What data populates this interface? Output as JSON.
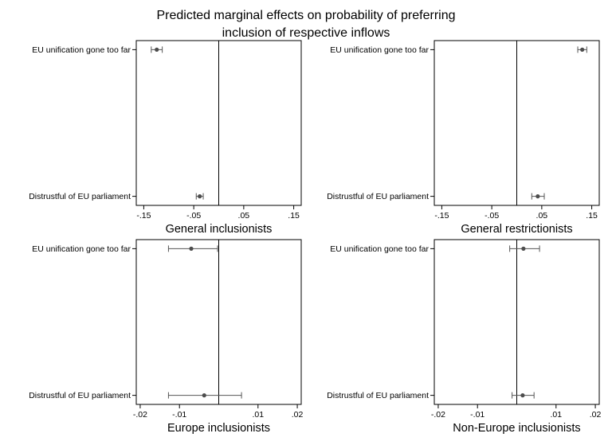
{
  "chart_data": {
    "type": "scatter",
    "title_lines": [
      "Predicted marginal effects on probability of preferring",
      "inclusion of respective inflows"
    ],
    "panels": [
      {
        "title": "General inclusionists",
        "categories": [
          "EU unification gone too far",
          "Distrustful of EU parliament"
        ],
        "xlim": [
          -0.165,
          0.165
        ],
        "xticks": [
          -0.15,
          -0.05,
          0.05,
          0.15
        ],
        "xtick_labels": [
          "-.15",
          "-.05",
          ".05",
          ".15"
        ],
        "reference_line": 0,
        "series": [
          {
            "estimates": [
              -0.124,
              -0.038
            ],
            "ci_low": [
              -0.135,
              -0.045
            ],
            "ci_high": [
              -0.113,
              -0.031
            ]
          }
        ]
      },
      {
        "title": "General restrictionists",
        "categories": [
          "EU unification gone too far",
          "Distrustful of EU parliament"
        ],
        "xlim": [
          -0.165,
          0.165
        ],
        "xticks": [
          -0.15,
          -0.05,
          0.05,
          0.15
        ],
        "xtick_labels": [
          "-.15",
          "-.05",
          ".05",
          ".15"
        ],
        "reference_line": 0,
        "series": [
          {
            "estimates": [
              0.131,
              0.042
            ],
            "ci_low": [
              0.122,
              0.03
            ],
            "ci_high": [
              0.14,
              0.055
            ]
          }
        ]
      },
      {
        "title": "Europe inclusionists",
        "categories": [
          "EU unification gone too far",
          "Distrustful of EU parliament"
        ],
        "xlim": [
          -0.021,
          0.021
        ],
        "xticks": [
          -0.02,
          -0.01,
          0.01,
          0.02
        ],
        "xtick_labels": [
          "-.02",
          "-.01",
          ".01",
          ".02"
        ],
        "reference_line": 0,
        "series": [
          {
            "estimates": [
              -0.007,
              -0.0037
            ],
            "ci_low": [
              -0.0128,
              -0.0128
            ],
            "ci_high": [
              -0.0003,
              0.0058
            ]
          }
        ]
      },
      {
        "title": "Non-Europe inclusionists",
        "categories": [
          "EU unification gone too far",
          "Distrustful of EU parliament"
        ],
        "xlim": [
          -0.021,
          0.021
        ],
        "xticks": [
          -0.02,
          -0.01,
          0.01,
          0.02
        ],
        "xtick_labels": [
          "-.02",
          "-.01",
          ".01",
          ".02"
        ],
        "reference_line": 0,
        "series": [
          {
            "estimates": [
              0.0017,
              0.0015
            ],
            "ci_low": [
              -0.0018,
              -0.0012
            ],
            "ci_high": [
              0.0058,
              0.0044
            ]
          }
        ]
      }
    ],
    "grid": false,
    "legend": "none",
    "colors": {
      "marker": "#4d4d4d",
      "ci": "#555555",
      "axis": "#000000",
      "ref_line": "#000000"
    }
  }
}
